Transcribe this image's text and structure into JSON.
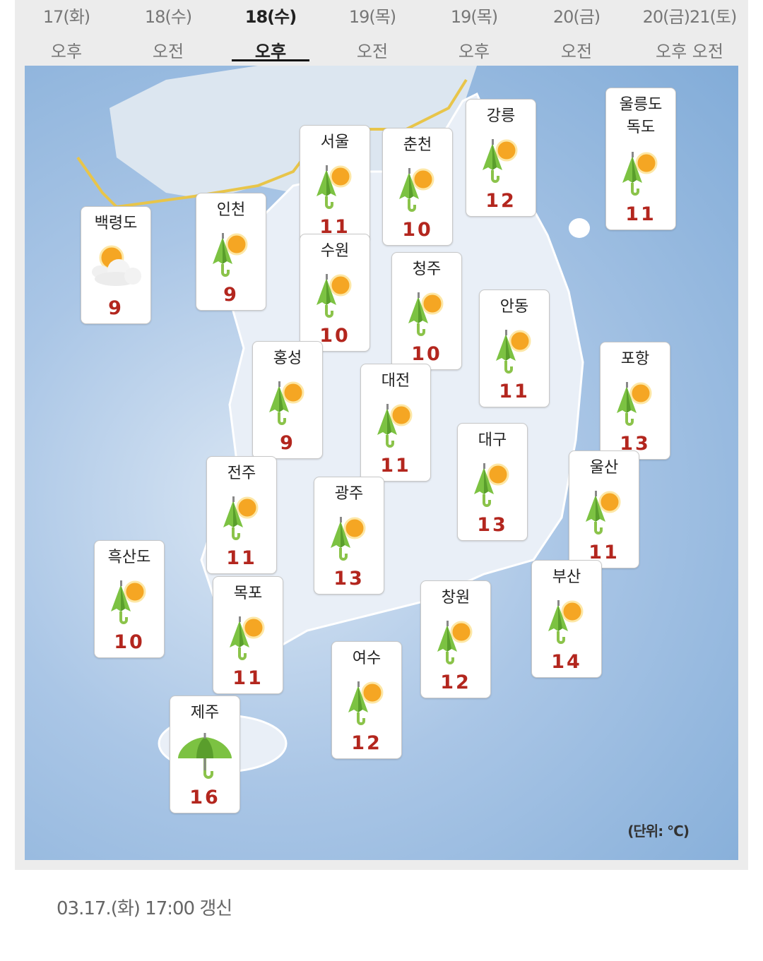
{
  "tabs": [
    {
      "date": "17(화)",
      "period": "오후"
    },
    {
      "date": "18(수)",
      "period": "오전"
    },
    {
      "date": "18(수)",
      "period": "오후",
      "active": true
    },
    {
      "date": "19(목)",
      "period": "오전"
    },
    {
      "date": "19(목)",
      "period": "오후"
    },
    {
      "date": "20(금)",
      "period": "오전"
    },
    {
      "date": "20(금)21(토)",
      "period": "오후 오전"
    }
  ],
  "cities": [
    {
      "name": "백령도",
      "temp": "9",
      "icon": "partly-cloudy-icon"
    },
    {
      "name": "인천",
      "temp": "9",
      "icon": "umbrella-sun-icon"
    },
    {
      "name": "서울",
      "temp": "11",
      "icon": "umbrella-sun-icon"
    },
    {
      "name": "수원",
      "temp": "10",
      "icon": "umbrella-sun-icon"
    },
    {
      "name": "춘천",
      "temp": "10",
      "icon": "umbrella-sun-icon"
    },
    {
      "name": "강릉",
      "temp": "12",
      "icon": "umbrella-sun-icon"
    },
    {
      "name": "울릉도\n독도",
      "temp": "11",
      "icon": "umbrella-sun-icon"
    },
    {
      "name": "청주",
      "temp": "10",
      "icon": "umbrella-sun-icon"
    },
    {
      "name": "안동",
      "temp": "11",
      "icon": "umbrella-sun-icon"
    },
    {
      "name": "홍성",
      "temp": "9",
      "icon": "umbrella-sun-icon"
    },
    {
      "name": "대전",
      "temp": "11",
      "icon": "umbrella-sun-icon"
    },
    {
      "name": "포항",
      "temp": "13",
      "icon": "umbrella-sun-icon"
    },
    {
      "name": "대구",
      "temp": "13",
      "icon": "umbrella-sun-icon"
    },
    {
      "name": "울산",
      "temp": "11",
      "icon": "umbrella-sun-icon"
    },
    {
      "name": "전주",
      "temp": "11",
      "icon": "umbrella-sun-icon"
    },
    {
      "name": "광주",
      "temp": "13",
      "icon": "umbrella-sun-icon"
    },
    {
      "name": "흑산도",
      "temp": "10",
      "icon": "umbrella-sun-icon"
    },
    {
      "name": "목포",
      "temp": "11",
      "icon": "umbrella-sun-icon"
    },
    {
      "name": "부산",
      "temp": "14",
      "icon": "umbrella-sun-icon"
    },
    {
      "name": "창원",
      "temp": "12",
      "icon": "umbrella-sun-icon"
    },
    {
      "name": "여수",
      "temp": "12",
      "icon": "umbrella-sun-icon"
    },
    {
      "name": "제주",
      "temp": "16",
      "icon": "umbrella-icon"
    }
  ],
  "unit": "(단위: °C)",
  "updated": "03.17.(화) 17:00 갱신",
  "colors": {
    "temp": "#b3261e",
    "sea": "#9fbfe3",
    "land": "#eef3f9",
    "border": "#e8c54a"
  }
}
